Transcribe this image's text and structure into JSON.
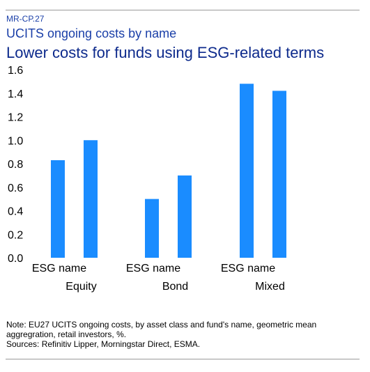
{
  "header": {
    "code": "MR-CP.27",
    "title": "UCITS ongoing costs by name",
    "subtitle": "Lower costs for funds using ESG-related terms"
  },
  "chart_data": {
    "type": "bar",
    "title": "UCITS ongoing costs by name",
    "subtitle": "Lower costs for funds using ESG-related terms",
    "groups": [
      {
        "label": "Equity",
        "bars": [
          {
            "label": "ESG name",
            "value": 0.83
          },
          {
            "label": "",
            "value": 1.0
          }
        ]
      },
      {
        "label": "Bond",
        "bars": [
          {
            "label": "ESG name",
            "value": 0.5
          },
          {
            "label": "",
            "value": 0.7
          }
        ]
      },
      {
        "label": "Mixed",
        "bars": [
          {
            "label": "ESG name",
            "value": 1.48
          },
          {
            "label": "",
            "value": 1.42
          }
        ]
      }
    ],
    "ylim": [
      0,
      1.6
    ],
    "yticks": [
      "0.0",
      "0.2",
      "0.4",
      "0.6",
      "0.8",
      "1.0",
      "1.2",
      "1.4",
      "1.6"
    ],
    "xlabel": "",
    "ylabel": "",
    "grid": false,
    "legend": "none",
    "bar_color": "#1a8cff"
  },
  "footer": {
    "note": "Note: EU27 UCITS ongoing costs, by asset class and fund's name, geometric mean aggregration, retail investors, %.",
    "sources": "Sources: Refinitiv Lipper, Morningstar Direct, ESMA."
  }
}
